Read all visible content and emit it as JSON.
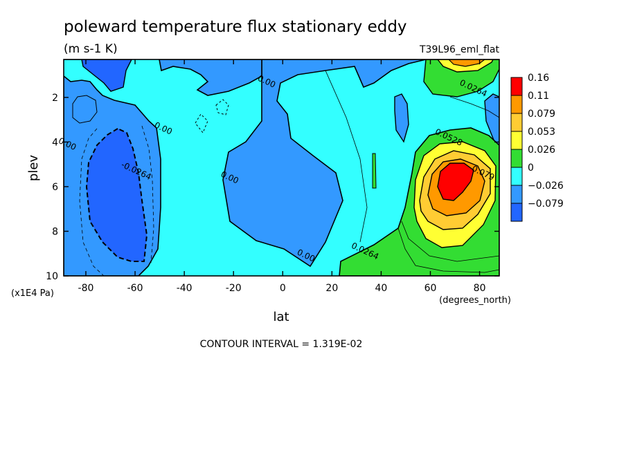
{
  "chart_data": {
    "type": "contour",
    "title": "poleward temperature flux stationary eddy",
    "units": "(m s-1 K)",
    "dataset": "T39L96_eml_flat",
    "xlabel": "lat",
    "xunits": "(degrees_north)",
    "ylabel": "plev",
    "yunits": "(x1E4 Pa)",
    "xlim": [
      -89,
      88
    ],
    "ylim": [
      10,
      0.3
    ],
    "x_ticks": [
      "-80",
      "-60",
      "-40",
      "-20",
      "0",
      "20",
      "40",
      "60",
      "80"
    ],
    "x_tick_values": [
      -80,
      -60,
      -40,
      -20,
      0,
      20,
      40,
      60,
      80
    ],
    "y_ticks": [
      "2",
      "4",
      "6",
      "8",
      "10"
    ],
    "y_tick_values": [
      2,
      4,
      6,
      8,
      10
    ],
    "colorbar": {
      "labels": [
        "0.16",
        "0.11",
        "0.079",
        "0.053",
        "0.026",
        "0",
        "−0.026",
        "−0.079"
      ],
      "colors": [
        "#ff0000",
        "#ff9900",
        "#ffcc33",
        "#ffff33",
        "#33dd33",
        "#33ffff",
        "#3399ff",
        "#2266ff"
      ]
    },
    "contour_labels": [
      {
        "text": "0.00",
        "x": -88,
        "y": 4.2
      },
      {
        "text": "-0.0264",
        "x": -60,
        "y": 5.4
      },
      {
        "text": "0.00",
        "x": -49,
        "y": 3.5
      },
      {
        "text": "0.00",
        "x": -7,
        "y": 1.4
      },
      {
        "text": "0.00",
        "x": -22,
        "y": 5.7
      },
      {
        "text": "0.00",
        "x": 9,
        "y": 9.2
      },
      {
        "text": "0.0264",
        "x": 33,
        "y": 9.0
      },
      {
        "text": "0.0528",
        "x": 67,
        "y": 3.9
      },
      {
        "text": "0.079",
        "x": 81,
        "y": 5.5
      },
      {
        "text": "0.0264",
        "x": 77,
        "y": 1.7
      }
    ],
    "contour_interval_label": "CONTOUR INTERVAL = 1.319E-02"
  }
}
